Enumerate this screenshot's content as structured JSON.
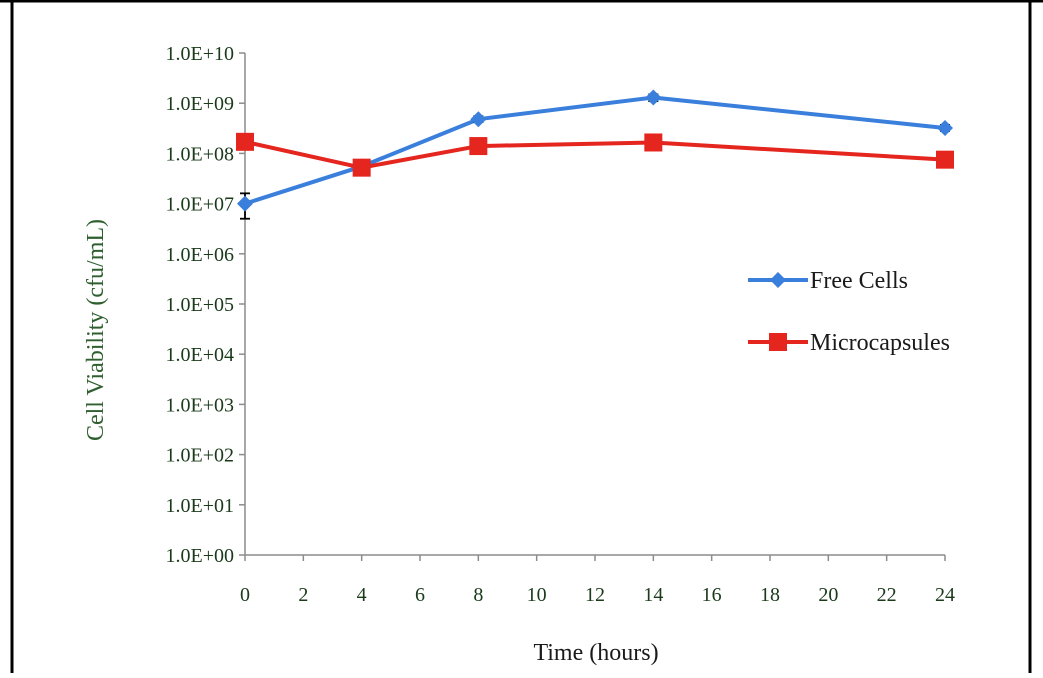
{
  "colors": {
    "free_cells": "#3a7fdc",
    "microcapsules": "#e4261f",
    "axis_text": "#1a3a1a",
    "axis_title": "#2f5f2f",
    "frame": "#000000"
  },
  "chart_data": {
    "type": "line",
    "title": "",
    "xlabel": "Time (hours)",
    "ylabel": "Cell Viability (cfu/mL)",
    "xlim": [
      0,
      24
    ],
    "ylim": [
      1,
      10000000000
    ],
    "yscale": "log",
    "x_ticks": [
      0,
      2,
      4,
      6,
      8,
      10,
      12,
      14,
      16,
      18,
      20,
      22,
      24
    ],
    "x_tick_labels": [
      "0",
      "2",
      "4",
      "6",
      "8",
      "10",
      "12",
      "14",
      "16",
      "18",
      "20",
      "22",
      "24"
    ],
    "y_ticks": [
      1,
      10,
      100,
      1000,
      10000,
      100000,
      1000000,
      10000000,
      100000000,
      1000000000,
      10000000000
    ],
    "y_tick_labels": [
      "1.0E+00",
      "1.0E+01",
      "1.0E+02",
      "1.0E+03",
      "1.0E+04",
      "1.0E+05",
      "1.0E+06",
      "1.0E+07",
      "1.0E+08",
      "1.0E+09",
      "1.0E+10"
    ],
    "grid": false,
    "legend_position": "right",
    "series": [
      {
        "name": "Free Cells",
        "color": "#3a7fdc",
        "marker": "diamond",
        "x": [
          0,
          4,
          8,
          14,
          24
        ],
        "y": [
          10000000,
          55000000,
          480000000,
          1300000000,
          320000000
        ],
        "err_low": [
          5000000,
          52000000,
          420000000,
          1100000000,
          280000000
        ],
        "err_high": [
          16000000,
          58000000,
          550000000,
          1500000000,
          370000000
        ]
      },
      {
        "name": "Microcapsules",
        "color": "#e4261f",
        "marker": "square",
        "x": [
          0,
          4,
          8,
          14,
          24
        ],
        "y": [
          170000000,
          52000000,
          140000000,
          165000000,
          75000000
        ]
      }
    ]
  }
}
